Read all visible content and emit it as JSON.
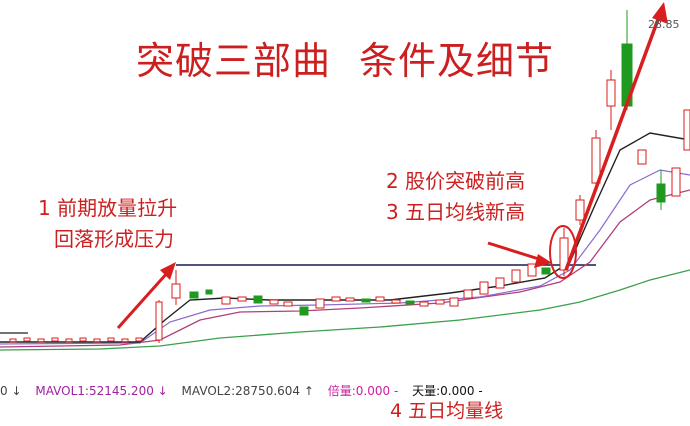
{
  "title": {
    "part1": "突破三部曲",
    "part2": "条件及细节"
  },
  "annotations": {
    "note1_line1": "1 前期放量拉升",
    "note1_line2": "回落形成压力",
    "note2": "2 股价突破前高",
    "note3": "3 五日均线新高",
    "note4": "4 五日均量线"
  },
  "peak_label": "28.85",
  "status": {
    "vol_tail": "0 ↓",
    "mavol1": "MAVOL1:52145.200 ↓",
    "mavol2": "MAVOL2:28750.604 ↑",
    "beiliang": "倍量:0.000 -",
    "tianliang": "天量:0.000 -"
  },
  "colors": {
    "up": "#d81e1e",
    "down": "#1f9a1f",
    "annotation": "#cc1f1f",
    "ma5": "#222222",
    "ma10": "#b0407a",
    "ma20": "#3aa04a"
  }
}
